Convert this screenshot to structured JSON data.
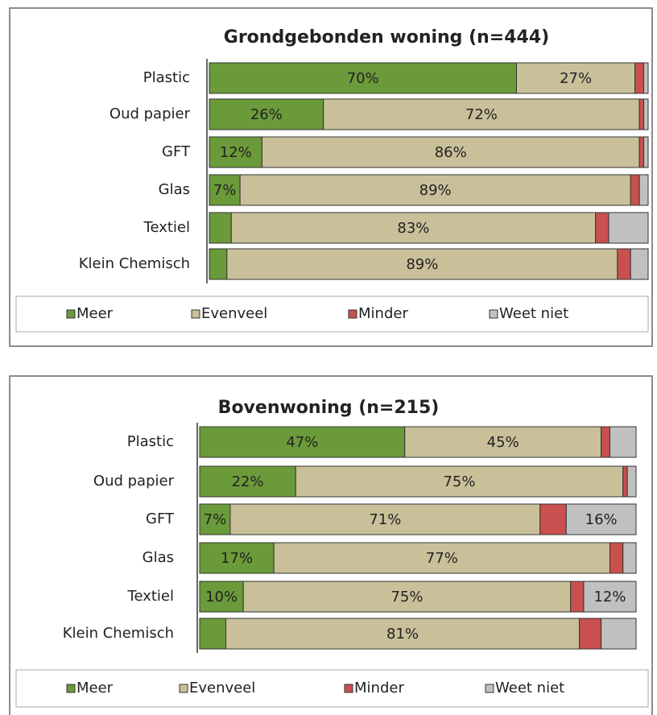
{
  "chart_data": [
    {
      "type": "bar",
      "orientation": "horizontal",
      "stacked": true,
      "title": "Grondgebonden woning (n=444)",
      "categories": [
        "Plastic",
        "Oud papier",
        "GFT",
        "Glas",
        "Textiel",
        "Klein Chemisch"
      ],
      "xlim": [
        0,
        100
      ],
      "series": [
        {
          "name": "Meer",
          "color": "#6b9a3a",
          "values": [
            70,
            26,
            12,
            7,
            5,
            4
          ],
          "value_labels": [
            "70%",
            "26%",
            "12%",
            "7%",
            null,
            null
          ]
        },
        {
          "name": "Evenveel",
          "color": "#c9c09a",
          "values": [
            27,
            72,
            86,
            89,
            83,
            89
          ],
          "value_labels": [
            "27%",
            "72%",
            "86%",
            "89%",
            "83%",
            "89%"
          ]
        },
        {
          "name": "Minder",
          "color": "#c9504f",
          "values": [
            2,
            1,
            1,
            2,
            3,
            3
          ],
          "value_labels": [
            null,
            null,
            null,
            null,
            null,
            null
          ]
        },
        {
          "name": "Weet niet",
          "color": "#c0c0c0",
          "values": [
            1,
            1,
            1,
            2,
            9,
            4
          ],
          "value_labels": [
            null,
            null,
            null,
            null,
            null,
            null
          ]
        }
      ],
      "legend": "bottom"
    },
    {
      "type": "bar",
      "orientation": "horizontal",
      "stacked": true,
      "title": "Bovenwoning (n=215)",
      "categories": [
        "Plastic",
        "Oud papier",
        "GFT",
        "Glas",
        "Textiel",
        "Klein Chemisch"
      ],
      "xlim": [
        0,
        100
      ],
      "series": [
        {
          "name": "Meer",
          "color": "#6b9a3a",
          "values": [
            47,
            22,
            7,
            17,
            10,
            6
          ],
          "value_labels": [
            "47%",
            "22%",
            "7%",
            "17%",
            "10%",
            null
          ]
        },
        {
          "name": "Evenveel",
          "color": "#c9c09a",
          "values": [
            45,
            75,
            71,
            77,
            75,
            81
          ],
          "value_labels": [
            "45%",
            "75%",
            "71%",
            "77%",
            "75%",
            "81%"
          ]
        },
        {
          "name": "Minder",
          "color": "#c9504f",
          "values": [
            2,
            1,
            6,
            3,
            3,
            5
          ],
          "value_labels": [
            null,
            null,
            null,
            null,
            null,
            null
          ]
        },
        {
          "name": "Weet niet",
          "color": "#c0c0c0",
          "values": [
            6,
            2,
            16,
            3,
            12,
            8
          ],
          "value_labels": [
            null,
            null,
            "16%",
            null,
            "12%",
            null
          ]
        }
      ],
      "legend": "bottom"
    }
  ]
}
